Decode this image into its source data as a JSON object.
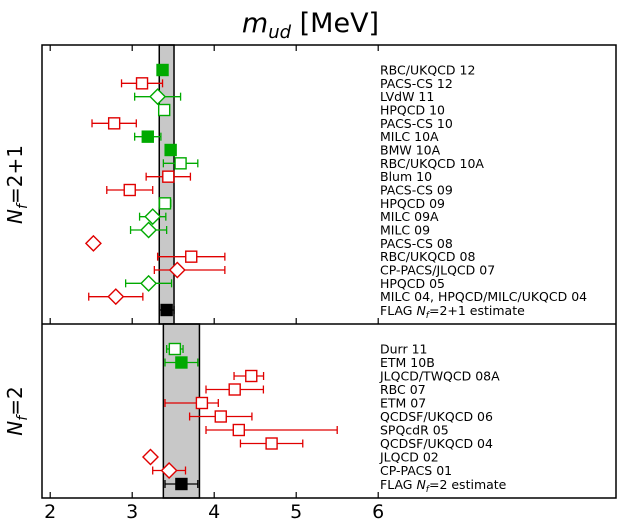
{
  "chart_data": {
    "type": "scatter",
    "title": "m_ud [MeV]",
    "title_main": "m",
    "title_sub": "ud",
    "title_unit": " [MeV]",
    "xlim": [
      1.9,
      8.9
    ],
    "x_ticks": [
      "2",
      "3",
      "4",
      "5",
      "6"
    ],
    "colors": {
      "green": "#00aa00",
      "red": "#e00000",
      "black": "#000000",
      "band": "#c8c8c8"
    },
    "panels": [
      {
        "label_main": "N",
        "label_sub": "f",
        "label_rest": "=2+1",
        "band": [
          3.33,
          3.51
        ],
        "points": [
          {
            "label": "RBC/UKQCD 12",
            "x": 3.37,
            "err": [
              0.06,
              0.06
            ],
            "color": "green",
            "marker": "square",
            "fill": true
          },
          {
            "label": "PACS-CS 12",
            "x": 3.12,
            "err": [
              0.25,
              0.25
            ],
            "color": "red",
            "marker": "square",
            "fill": false
          },
          {
            "label": "LVdW 11",
            "x": 3.31,
            "err": [
              0.28,
              0.28
            ],
            "color": "green",
            "marker": "diamond",
            "fill": false
          },
          {
            "label": "HPQCD 10",
            "x": 3.39,
            "err": [
              0.06,
              0.06
            ],
            "color": "green",
            "marker": "square",
            "fill": false
          },
          {
            "label": "PACS-CS 10",
            "x": 2.78,
            "err": [
              0.27,
              0.27
            ],
            "color": "red",
            "marker": "square",
            "fill": false
          },
          {
            "label": "MILC 10A",
            "x": 3.19,
            "err": [
              0.16,
              0.16
            ],
            "color": "green",
            "marker": "square",
            "fill": true
          },
          {
            "label": "BMW 10A",
            "x": 3.469,
            "err": [
              0.06,
              0.06
            ],
            "color": "green",
            "marker": "square",
            "fill": true
          },
          {
            "label": "RBC/UKQCD 10A",
            "x": 3.59,
            "err": [
              0.21,
              0.21
            ],
            "color": "green",
            "marker": "square",
            "fill": false
          },
          {
            "label": "Blum 10",
            "x": 3.44,
            "err": [
              0.27,
              0.27
            ],
            "color": "red",
            "marker": "square",
            "fill": false
          },
          {
            "label": "PACS-CS 09",
            "x": 2.97,
            "err": [
              0.28,
              0.28
            ],
            "color": "red",
            "marker": "square",
            "fill": false
          },
          {
            "label": "HPQCD 09",
            "x": 3.4,
            "err": [
              0.07,
              0.07
            ],
            "color": "green",
            "marker": "square",
            "fill": false
          },
          {
            "label": "MILC 09A",
            "x": 3.25,
            "err": [
              0.16,
              0.16
            ],
            "color": "green",
            "marker": "diamond",
            "fill": false
          },
          {
            "label": "MILC 09",
            "x": 3.2,
            "err": [
              0.22,
              0.22
            ],
            "color": "green",
            "marker": "diamond",
            "fill": false
          },
          {
            "label": "PACS-CS 08",
            "x": 2.527,
            "err": [
              0,
              0
            ],
            "color": "red",
            "marker": "diamond",
            "fill": false
          },
          {
            "label": "RBC/UKQCD 08",
            "x": 3.72,
            "err": [
              0.41,
              0.41
            ],
            "color": "red",
            "marker": "square",
            "fill": false
          },
          {
            "label": "CP-PACS/JLQCD 07",
            "x": 3.55,
            "err": [
              0.28,
              0.58
            ],
            "color": "red",
            "marker": "diamond",
            "fill": false
          },
          {
            "label": "HPQCD 05",
            "x": 3.2,
            "err": [
              0.28,
              0.28
            ],
            "color": "green",
            "marker": "diamond",
            "fill": false
          },
          {
            "label": "MILC 04, HPQCD/MILC/UKQCD 04",
            "x": 2.8,
            "err": [
              0.33,
              0.33
            ],
            "color": "red",
            "marker": "diamond",
            "fill": false
          },
          {
            "label": "FLAG N_f=2+1 estimate",
            "x": 3.42,
            "err": [
              0.09,
              0.09
            ],
            "color": "black",
            "marker": "square",
            "fill": true,
            "estimate": true
          }
        ]
      },
      {
        "label_main": "N",
        "label_sub": "f",
        "label_rest": "=2",
        "band": [
          3.38,
          3.82
        ],
        "points": [
          {
            "label": "Durr 11",
            "x": 3.52,
            "err": [
              0.1,
              0.1
            ],
            "color": "green",
            "marker": "square",
            "fill": false
          },
          {
            "label": "ETM 10B",
            "x": 3.6,
            "err": [
              0.2,
              0.2
            ],
            "color": "green",
            "marker": "square",
            "fill": true
          },
          {
            "label": "JLQCD/TWQCD 08A",
            "x": 4.452,
            "err": [
              0.21,
              0.15
            ],
            "color": "red",
            "marker": "square",
            "fill": false
          },
          {
            "label": "RBC 07",
            "x": 4.25,
            "err": [
              0.35,
              0.35
            ],
            "color": "red",
            "marker": "square",
            "fill": false
          },
          {
            "label": "ETM 07",
            "x": 3.85,
            "err": [
              0.45,
              0.2
            ],
            "color": "red",
            "marker": "square",
            "fill": false
          },
          {
            "label": "QCDSF/UKQCD 06",
            "x": 4.08,
            "err": [
              0.38,
              0.38
            ],
            "color": "red",
            "marker": "square",
            "fill": false
          },
          {
            "label": "SPQcdR 05",
            "x": 4.3,
            "err": [
              0.4,
              1.2
            ],
            "color": "red",
            "marker": "square",
            "fill": false
          },
          {
            "label": "QCDSF/UKQCD 04",
            "x": 4.7,
            "err": [
              0.38,
              0.38
            ],
            "color": "red",
            "marker": "square",
            "fill": false
          },
          {
            "label": "JLQCD 02",
            "x": 3.223,
            "err": [
              0,
              0
            ],
            "color": "red",
            "marker": "diamond",
            "fill": false
          },
          {
            "label": "CP-PACS 01",
            "x": 3.45,
            "err": [
              0.2,
              0.2
            ],
            "color": "red",
            "marker": "diamond",
            "fill": false
          },
          {
            "label": "FLAG N_f=2 estimate",
            "x": 3.6,
            "err": [
              0.2,
              0.2
            ],
            "color": "black",
            "marker": "square",
            "fill": true,
            "estimate": true
          }
        ]
      }
    ]
  }
}
